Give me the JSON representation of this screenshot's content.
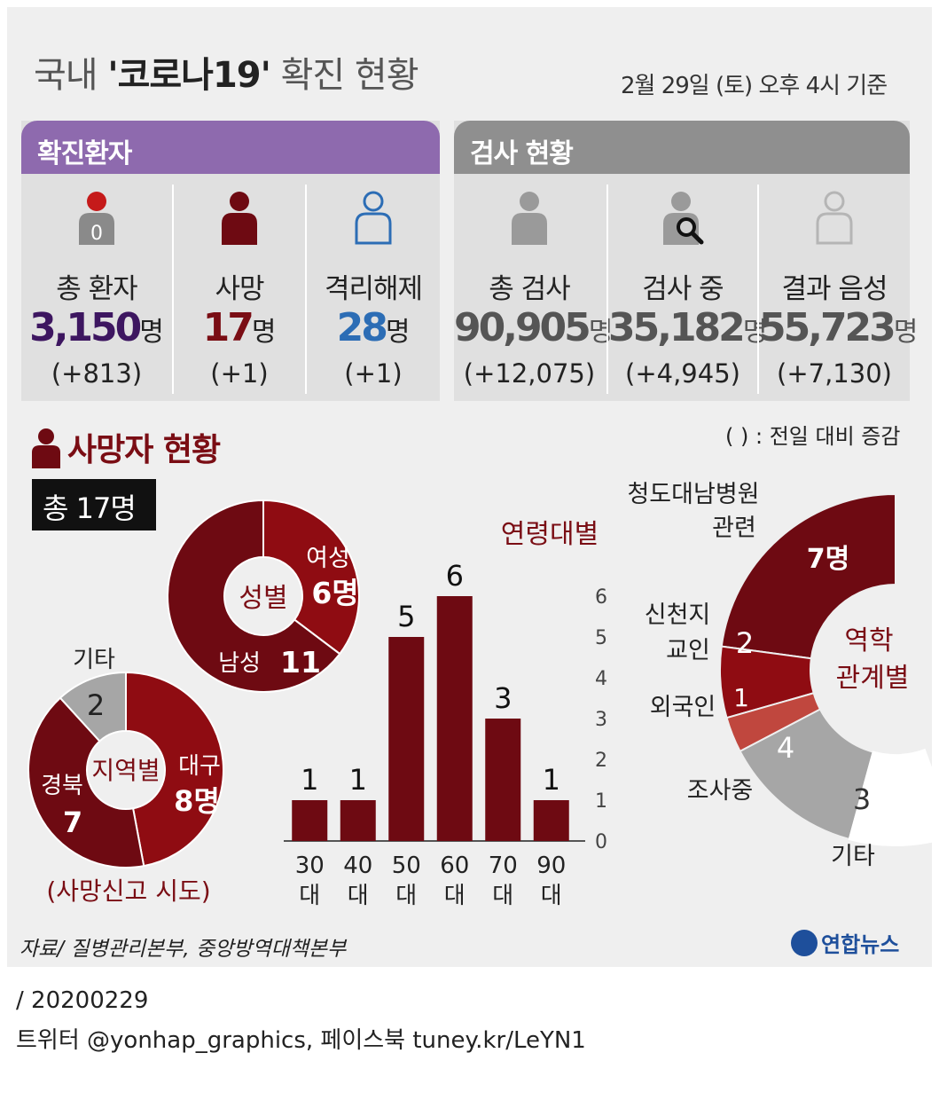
{
  "title": {
    "prefix": "국내 ",
    "highlight": "'코로나19'",
    "suffix": " 확진 현황"
  },
  "as_of": "2월 29일 (토) 오후 4시 기준",
  "confirmed_panel": {
    "header": "확진환자",
    "stats": [
      {
        "label": "총 환자",
        "value": "3,150",
        "unit": "명",
        "change": "(+813)",
        "icon_number": "0",
        "color": "#3d1660"
      },
      {
        "label": "사망",
        "value": "17",
        "unit": "명",
        "change": "(+1)",
        "color": "#7a0d14"
      },
      {
        "label": "격리해제",
        "value": "28",
        "unit": "명",
        "change": "(+1)",
        "color": "#2c6db5"
      }
    ]
  },
  "test_panel": {
    "header": "검사 현황",
    "stats": [
      {
        "label": "총 검사",
        "value": "90,905",
        "unit": "명",
        "change": "(+12,075)"
      },
      {
        "label": "검사 중",
        "value": "35,182",
        "unit": "명",
        "change": "(+4,945)"
      },
      {
        "label": "결과 음성",
        "value": "55,723",
        "unit": "명",
        "change": "(+7,130)"
      }
    ]
  },
  "note": "( ) : 전일 대비 증감",
  "deaths_header": "사망자 현황",
  "deaths_total": "총 17명",
  "source": "자료/ 질병관리본부, 중앙방역대책본부",
  "logo": "연합뉴스",
  "footer": {
    "line1": "/ 20200229",
    "line2": "트위터 @yonhap_graphics, 페이스북 tuney.kr/LeYN1"
  },
  "colors": {
    "purple": "#8e6aae",
    "gray_header": "#8f8f8f",
    "dark_red": "#6e0a12",
    "red": "#8f0c12",
    "light_red": "#c0473e",
    "gray": "#a6a6a6",
    "blue": "#2c6db5"
  },
  "chart_data": [
    {
      "type": "pie",
      "center_label": "성별",
      "slices": [
        {
          "label": "여성",
          "value": 6,
          "value_text": "6명",
          "color": "#8f0c12"
        },
        {
          "label": "남성",
          "value": 11,
          "value_text": "11",
          "color": "#6e0a12"
        }
      ]
    },
    {
      "type": "pie",
      "center_label": "지역별",
      "caption": "(사망신고 시도)",
      "slices": [
        {
          "label": "대구",
          "value": 8,
          "value_text": "8명",
          "color": "#8f0c12"
        },
        {
          "label": "경북",
          "value": 7,
          "value_text": "7",
          "color": "#6e0a12"
        },
        {
          "label": "기타",
          "value": 2,
          "value_text": "2",
          "color": "#a6a6a6"
        }
      ]
    },
    {
      "type": "bar",
      "title": "연령대별",
      "categories": [
        "30대",
        "40대",
        "50대",
        "60대",
        "70대",
        "90대"
      ],
      "values": [
        1,
        1,
        5,
        6,
        3,
        1
      ],
      "ylim": [
        0,
        6
      ],
      "yticks": [
        0,
        1,
        2,
        3,
        4,
        5,
        6
      ],
      "color": "#6e0a12"
    },
    {
      "type": "pie",
      "center_label": "역학 관계별",
      "slices": [
        {
          "label": "청도대남병원 관련",
          "value": 7,
          "value_text": "7명",
          "color": "#6e0a12"
        },
        {
          "label": "신천지 교인",
          "value": 2,
          "value_text": "2",
          "color": "#8f0c12"
        },
        {
          "label": "외국인",
          "value": 1,
          "value_text": "1",
          "color": "#c0473e"
        },
        {
          "label": "조사중",
          "value": 4,
          "value_text": "4",
          "color": "#a6a6a6"
        },
        {
          "label": "기타",
          "value": 3,
          "value_text": "3",
          "color": "#ffffff"
        }
      ]
    }
  ]
}
